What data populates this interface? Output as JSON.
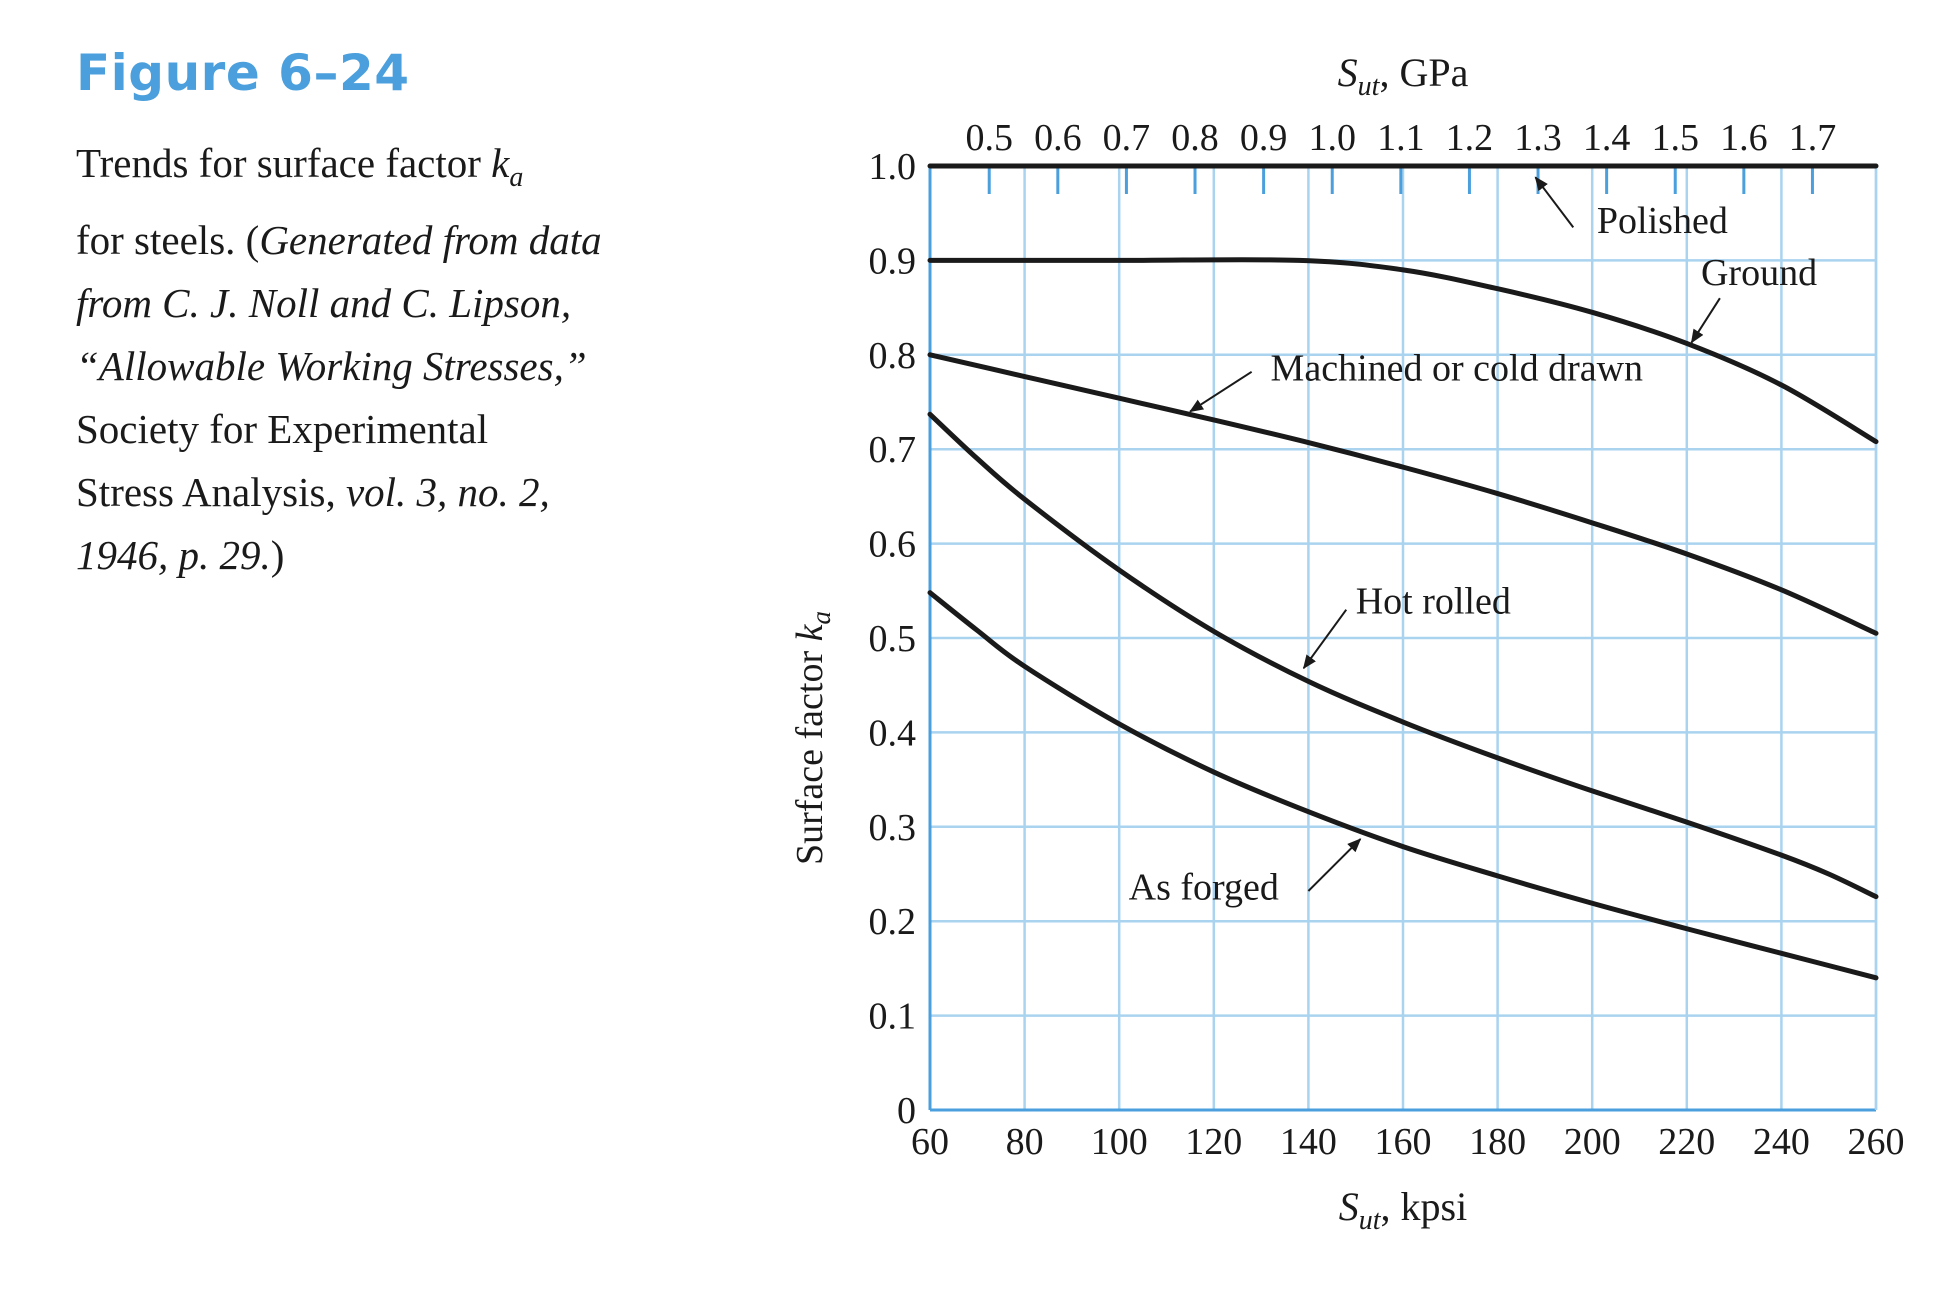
{
  "figure": {
    "label": "Figure 6–24",
    "caption": {
      "line1a": "Trends for surface factor ",
      "line1b": "k",
      "line1c": "a",
      "line2a": "for steels. (",
      "line2b": "Generated from data",
      "line3": "from C. J. Noll and C. Lipson,",
      "line4": "“Allowable Working Stresses,”",
      "line5": "Society for Experimental",
      "line6a": "Stress Analysis, ",
      "line6b": "vol. 3, no. 2,",
      "line7a": "1946, p. 29.",
      "line7b": ")"
    }
  },
  "colors": {
    "figure_label": "#4a9fdc",
    "grid": "#a9d3ef",
    "axis": "#4a9fdc",
    "curve": "#1a1a1a",
    "text": "#1a1a1a"
  },
  "chart_data": {
    "type": "line",
    "grid": true,
    "xlabel": {
      "main": "S",
      "sub": "ut",
      "rest": ", kpsi"
    },
    "ylabel": {
      "main": "Surface factor ",
      "italic": "k",
      "sub": "a"
    },
    "top_axis_label": {
      "main": "S",
      "sub": "ut",
      "rest": ", GPa"
    },
    "xlim": [
      60,
      260
    ],
    "ylim": [
      0,
      1.0
    ],
    "x_ticks": [
      "60",
      "80",
      "100",
      "120",
      "140",
      "160",
      "180",
      "200",
      "220",
      "240",
      "260"
    ],
    "y_ticks": [
      "0",
      "0.1",
      "0.2",
      "0.3",
      "0.4",
      "0.5",
      "0.6",
      "0.7",
      "0.8",
      "0.9",
      "1.0"
    ],
    "top_ticks": [
      {
        "label": "0.5",
        "gpa": 0.5
      },
      {
        "label": "0.6",
        "gpa": 0.6
      },
      {
        "label": "0.7",
        "gpa": 0.7
      },
      {
        "label": "0.8",
        "gpa": 0.8
      },
      {
        "label": "0.9",
        "gpa": 0.9
      },
      {
        "label": "1.0",
        "gpa": 1.0
      },
      {
        "label": "1.1",
        "gpa": 1.1
      },
      {
        "label": "1.2",
        "gpa": 1.2
      },
      {
        "label": "1.3",
        "gpa": 1.3
      },
      {
        "label": "1.4",
        "gpa": 1.4
      },
      {
        "label": "1.5",
        "gpa": 1.5
      },
      {
        "label": "1.6",
        "gpa": 1.6
      },
      {
        "label": "1.7",
        "gpa": 1.7
      }
    ],
    "series": [
      {
        "name": "Polished",
        "x": [
          60,
          260
        ],
        "y": [
          1.0,
          1.0
        ]
      },
      {
        "name": "Ground",
        "x": [
          60,
          100,
          138,
          160,
          180,
          200,
          220,
          240,
          260
        ],
        "y": [
          0.9,
          0.9,
          0.9,
          0.89,
          0.87,
          0.845,
          0.812,
          0.768,
          0.708
        ]
      },
      {
        "name": "Machined or cold drawn",
        "x": [
          60,
          80,
          100,
          120,
          140,
          160,
          180,
          200,
          220,
          240,
          260
        ],
        "y": [
          0.8,
          0.777,
          0.754,
          0.731,
          0.707,
          0.681,
          0.653,
          0.622,
          0.589,
          0.551,
          0.505
        ]
      },
      {
        "name": "Hot rolled",
        "x": [
          60,
          70,
          80,
          100,
          120,
          140,
          160,
          180,
          200,
          220,
          240,
          250,
          260
        ],
        "y": [
          0.737,
          0.69,
          0.647,
          0.572,
          0.507,
          0.454,
          0.411,
          0.373,
          0.338,
          0.305,
          0.27,
          0.25,
          0.226
        ]
      },
      {
        "name": "As forged",
        "x": [
          60,
          70,
          80,
          100,
          120,
          140,
          160,
          180,
          200,
          220,
          240,
          260
        ],
        "y": [
          0.548,
          0.508,
          0.47,
          0.409,
          0.358,
          0.316,
          0.279,
          0.248,
          0.219,
          0.192,
          0.166,
          0.14
        ]
      }
    ],
    "annotations": [
      {
        "text": "Polished",
        "label_x": 201,
        "label_y": 0.929,
        "arrow_from_x": 196,
        "arrow_from_y": 0.935,
        "arrow_to_x": 188,
        "arrow_to_y": 0.988
      },
      {
        "text": "Ground",
        "label_x": 223,
        "label_y": 0.874,
        "arrow_from_x": 227,
        "arrow_from_y": 0.86,
        "arrow_to_x": 221,
        "arrow_to_y": 0.813
      },
      {
        "text": "Machined or cold drawn",
        "label_x": 132,
        "label_y": 0.773,
        "arrow_from_x": 128,
        "arrow_from_y": 0.782,
        "arrow_to_x": 115,
        "arrow_to_y": 0.74
      },
      {
        "text": "Hot rolled",
        "label_x": 150,
        "label_y": 0.526,
        "arrow_from_x": 148,
        "arrow_from_y": 0.53,
        "arrow_to_x": 139,
        "arrow_to_y": 0.468
      },
      {
        "text": "As forged",
        "label_x": 102,
        "label_y": 0.223,
        "arrow_from_x": 140,
        "arrow_from_y": 0.232,
        "arrow_to_x": 151,
        "arrow_to_y": 0.287
      }
    ]
  }
}
